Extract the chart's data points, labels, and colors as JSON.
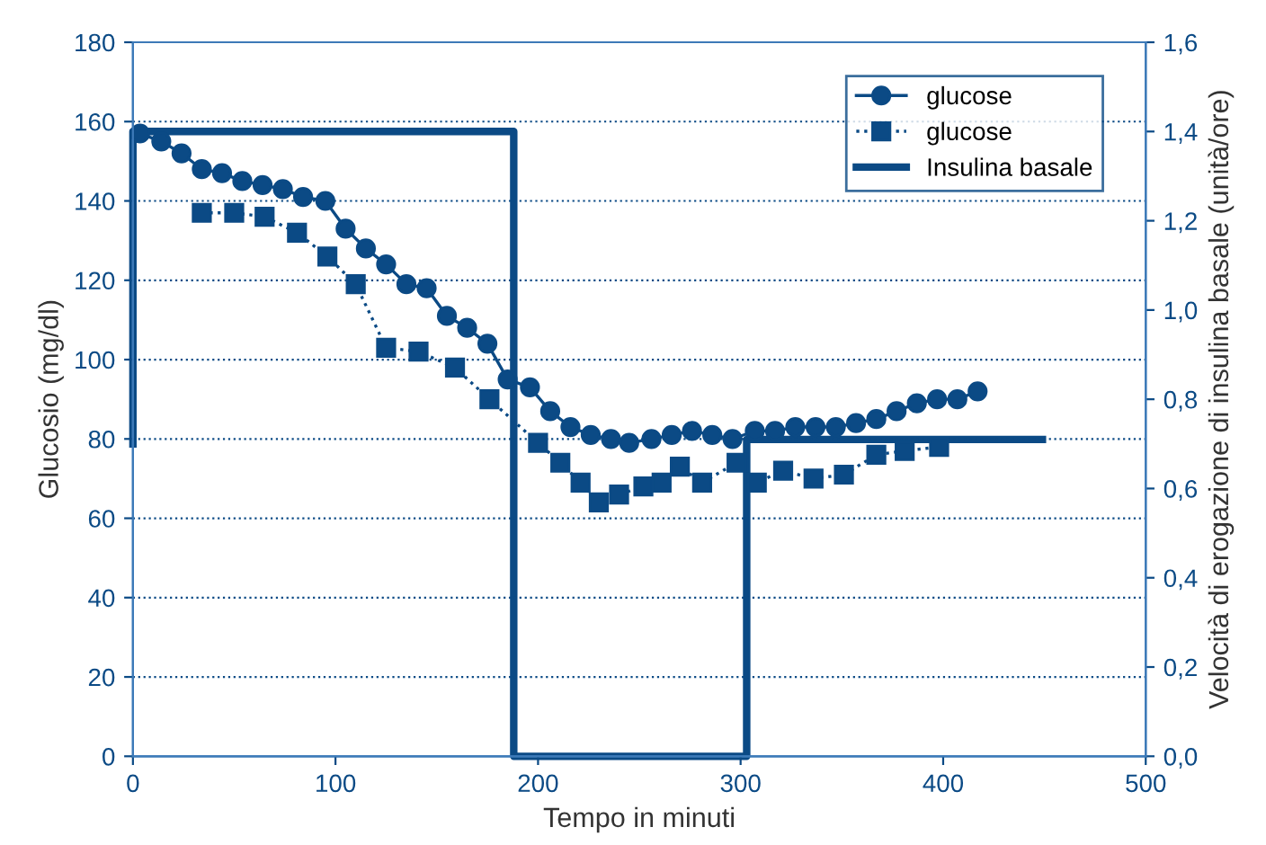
{
  "chart_data": {
    "type": "line",
    "xlabel": "Tempo in minuti",
    "ylabel": "Glucosio (mg/dl)",
    "y2label": "Velocità di erogazione di insulina basale (unità/ore)",
    "xlim": [
      0,
      500
    ],
    "xticks": [
      0,
      100,
      200,
      300,
      400,
      500
    ],
    "ylim": [
      0,
      180
    ],
    "yticks": [
      0,
      20,
      40,
      60,
      80,
      100,
      120,
      140,
      160,
      180
    ],
    "y2lim": [
      0,
      1.6
    ],
    "y2ticks": [
      {
        "value": 0,
        "label": "0,0"
      },
      {
        "value": 0.2,
        "label": "0,2"
      },
      {
        "value": 0.4,
        "label": "0,4"
      },
      {
        "value": 0.6,
        "label": "0,6"
      },
      {
        "value": 0.8,
        "label": "0,8"
      },
      {
        "value": 1.0,
        "label": "1,0"
      },
      {
        "value": 1.2,
        "label": "1,2"
      },
      {
        "value": 1.4,
        "label": "1,4"
      },
      {
        "value": 1.6,
        "label": "1,6"
      }
    ],
    "grid": "y",
    "legend": "top right",
    "series": [
      {
        "name": "glucose",
        "color": "#0b4a85",
        "marker": "circle",
        "line_style": "solid",
        "x": [
          3.5,
          14,
          24,
          34,
          44,
          54,
          64,
          74,
          84,
          95,
          105,
          115,
          125,
          135,
          145,
          155,
          165,
          175,
          185,
          196,
          206,
          216,
          226,
          236,
          245,
          256,
          266,
          276,
          286,
          296,
          307,
          317,
          327,
          337,
          347,
          357,
          367,
          377,
          387,
          397,
          407,
          417
        ],
        "values": [
          157,
          155,
          152,
          148,
          147,
          145,
          144,
          143,
          141,
          140,
          133,
          128,
          124,
          119,
          118,
          111,
          108,
          104,
          95,
          93,
          87,
          83,
          81,
          80,
          79,
          80,
          81,
          82,
          81,
          80,
          82,
          82,
          83,
          83,
          83,
          84,
          85,
          87,
          89,
          90,
          90,
          92
        ]
      },
      {
        "name": "glucose",
        "color": "#0b4a85",
        "marker": "square",
        "line_style": "dotted",
        "x": [
          34,
          50,
          65,
          81,
          96,
          110,
          125,
          141,
          159,
          176,
          200,
          211,
          221,
          230,
          240,
          252,
          261,
          270,
          281,
          298,
          308,
          321,
          336,
          351,
          367,
          381,
          398
        ],
        "values": [
          137,
          137,
          136,
          132,
          126,
          119,
          103,
          102,
          98,
          90,
          79,
          74,
          69,
          64,
          66,
          68,
          69,
          73,
          69,
          74,
          69,
          72,
          70,
          71,
          76,
          77,
          78
        ]
      },
      {
        "name": "Insulina basale",
        "color": "#0b4a85",
        "marker": "none",
        "line_style": "solid",
        "axis": "y2",
        "x": [
          0,
          0,
          188,
          188,
          303,
          303,
          449
        ],
        "values": [
          0.7,
          1.4,
          1.4,
          0,
          0,
          0.71,
          0.71
        ]
      }
    ]
  }
}
